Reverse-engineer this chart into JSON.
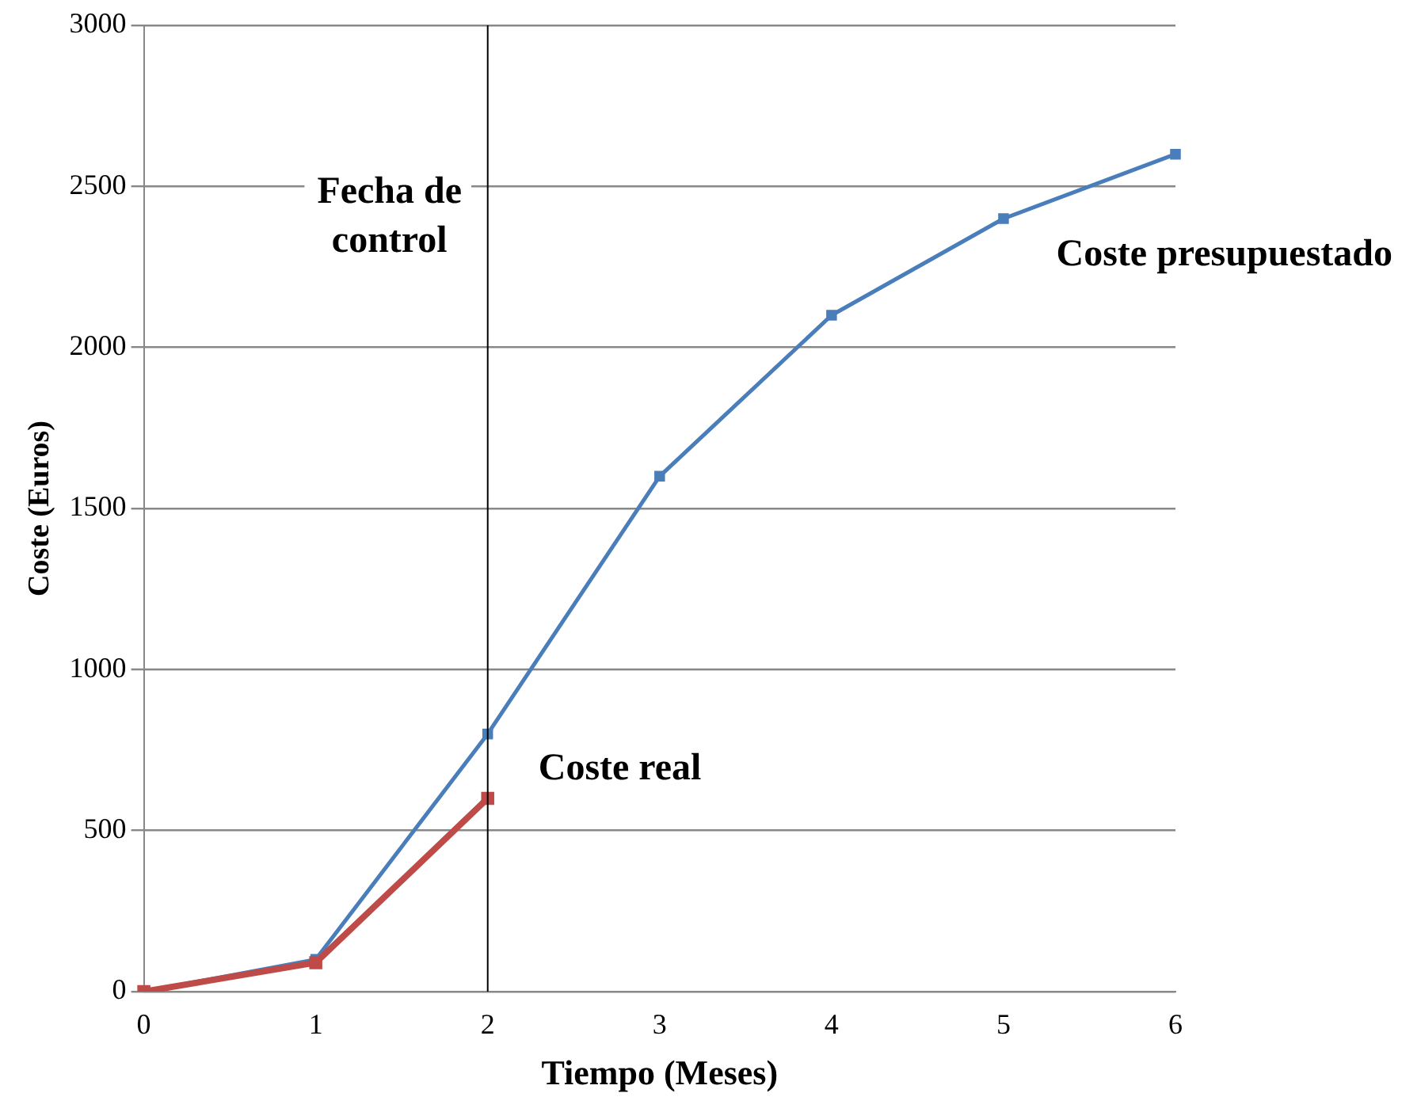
{
  "chart_data": {
    "type": "line",
    "xlabel": "Tiempo (Meses)",
    "ylabel": "Coste (Euros)",
    "categories": [
      "0",
      "1",
      "2",
      "3",
      "4",
      "5",
      "6"
    ],
    "series": [
      {
        "name": "Coste presupuestado",
        "color": "#4a7ebb",
        "values": [
          0,
          100,
          800,
          1600,
          2100,
          2400,
          2600
        ]
      },
      {
        "name": "Coste real",
        "color": "#be4b48",
        "values": [
          0,
          90,
          600,
          null,
          null,
          null,
          null
        ]
      }
    ],
    "ylim": [
      0,
      3000
    ],
    "yticks": [
      0,
      500,
      1000,
      1500,
      2000,
      2500,
      3000
    ],
    "grid": "y",
    "legend": false,
    "marker": "square",
    "line_style": "solid",
    "ref_lines": [
      {
        "axis": "x",
        "value": "2",
        "label": "Fecha de control",
        "color": "#000000"
      }
    ]
  }
}
